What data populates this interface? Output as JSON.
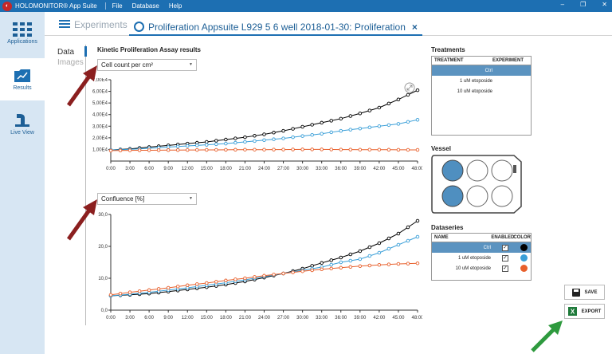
{
  "titlebar": {
    "app_title": "HOLOMONITOR® App Suite",
    "menus": [
      "File",
      "Database",
      "Help"
    ],
    "logo": "holomonitor-logo"
  },
  "sidebar": {
    "items": [
      {
        "label": "Applications",
        "icon": "grid-icon"
      },
      {
        "label": "Results",
        "icon": "results-chart-icon"
      },
      {
        "label": "Live View",
        "icon": "microscope-icon"
      }
    ]
  },
  "tabs": {
    "experiments_label": "Experiments",
    "active_label": "Proliferation Appsuite L929 5 6 well 2018-01-30: Proliferation",
    "close_glyph": "×"
  },
  "viewtabs": {
    "data": "Data",
    "images": "Images"
  },
  "main": {
    "section_title": "Kinetic Proliferation Assay results"
  },
  "dropdowns": {
    "top": "Cell count per cm²",
    "bottom": "Confluence [%]"
  },
  "colors": {
    "accent": "#1d6fb2",
    "ctrl": "#000000",
    "etoposide_1": "#3a9fd8",
    "etoposide_10": "#e8602c",
    "arrow_red": "#8b1f1f",
    "arrow_green": "#2e9a3e"
  },
  "chart_data": [
    {
      "type": "line",
      "ylabel": "Cell count per cm²",
      "x": [
        "0:00",
        "3:00",
        "6:00",
        "9:00",
        "12:00",
        "15:00",
        "18:00",
        "21:00",
        "24:00",
        "27:00",
        "30:00",
        "33:00",
        "36:00",
        "39:00",
        "42:00",
        "45:00",
        "48:00"
      ],
      "yticks": [
        "1,00E4",
        "2,00E4",
        "3,00E4",
        "4,00E4",
        "5,00E4",
        "6,00E4",
        "7,00E4"
      ],
      "ylim": [
        0,
        70000
      ],
      "series": [
        {
          "name": "Ctrl",
          "color": "#000000",
          "values": [
            9500,
            10500,
            12000,
            13500,
            15000,
            16500,
            18500,
            20500,
            23000,
            26000,
            29500,
            33000,
            36500,
            41000,
            46000,
            53000,
            61000
          ]
        },
        {
          "name": "1 uM etoposide",
          "color": "#3a9fd8",
          "values": [
            9500,
            10000,
            11000,
            12000,
            13000,
            14000,
            15000,
            16500,
            18000,
            19500,
            21500,
            23500,
            26000,
            28000,
            30000,
            32000,
            35500
          ]
        },
        {
          "name": "10 uM etoposide",
          "color": "#e8602c",
          "values": [
            9000,
            9200,
            9300,
            9400,
            9500,
            9600,
            9700,
            9800,
            9800,
            9900,
            10000,
            10000,
            9900,
            9800,
            9800,
            9700,
            9600
          ]
        }
      ]
    },
    {
      "type": "line",
      "ylabel": "Confluence [%]",
      "x": [
        "0:00",
        "3:00",
        "6:00",
        "9:00",
        "12:00",
        "15:00",
        "18:00",
        "21:00",
        "24:00",
        "27:00",
        "30:00",
        "33:00",
        "36:00",
        "39:00",
        "42:00",
        "45:00",
        "48:00"
      ],
      "yticks": [
        "0,0",
        "10,0",
        "20,0",
        "30,0"
      ],
      "ylim": [
        0,
        30
      ],
      "series": [
        {
          "name": "Ctrl",
          "color": "#000000",
          "values": [
            4.5,
            4.8,
            5.2,
            5.8,
            6.5,
            7.2,
            8.0,
            9.0,
            10.2,
            11.5,
            13.0,
            14.8,
            16.5,
            18.5,
            21.0,
            24.0,
            28.0
          ]
        },
        {
          "name": "1 uM etoposide",
          "color": "#3a9fd8",
          "values": [
            4.5,
            5.0,
            5.6,
            6.3,
            7.0,
            7.8,
            8.6,
            9.5,
            10.5,
            11.5,
            12.5,
            13.5,
            15.0,
            16.0,
            18.0,
            20.5,
            23.0
          ]
        },
        {
          "name": "10 uM etoposide",
          "color": "#e8602c",
          "values": [
            4.8,
            5.6,
            6.3,
            7.0,
            7.8,
            8.5,
            9.3,
            10.0,
            10.8,
            11.5,
            12.2,
            12.8,
            13.3,
            13.8,
            14.2,
            14.5,
            14.7
          ]
        }
      ]
    }
  ],
  "treatments": {
    "title": "Treatments",
    "col_treatment": "TREATMENT",
    "col_experiment": "EXPERIMENT",
    "rows": [
      "Ctrl",
      "1 uM etoposide",
      "10 uM etoposide"
    ]
  },
  "vessel": {
    "title": "Vessel"
  },
  "datasets": {
    "title": "Dataseries",
    "col_name": "NAME",
    "col_enabled": "ENABLED",
    "col_color": "COLOR",
    "check": "✓",
    "rows": [
      {
        "name": "Ctrl",
        "color": "#000000"
      },
      {
        "name": "1 uM etoposide",
        "color": "#3a9fd8"
      },
      {
        "name": "10 uM etoposide",
        "color": "#e8602c"
      }
    ]
  },
  "buttons": {
    "save": "SAVE",
    "export": "EXPORT"
  }
}
